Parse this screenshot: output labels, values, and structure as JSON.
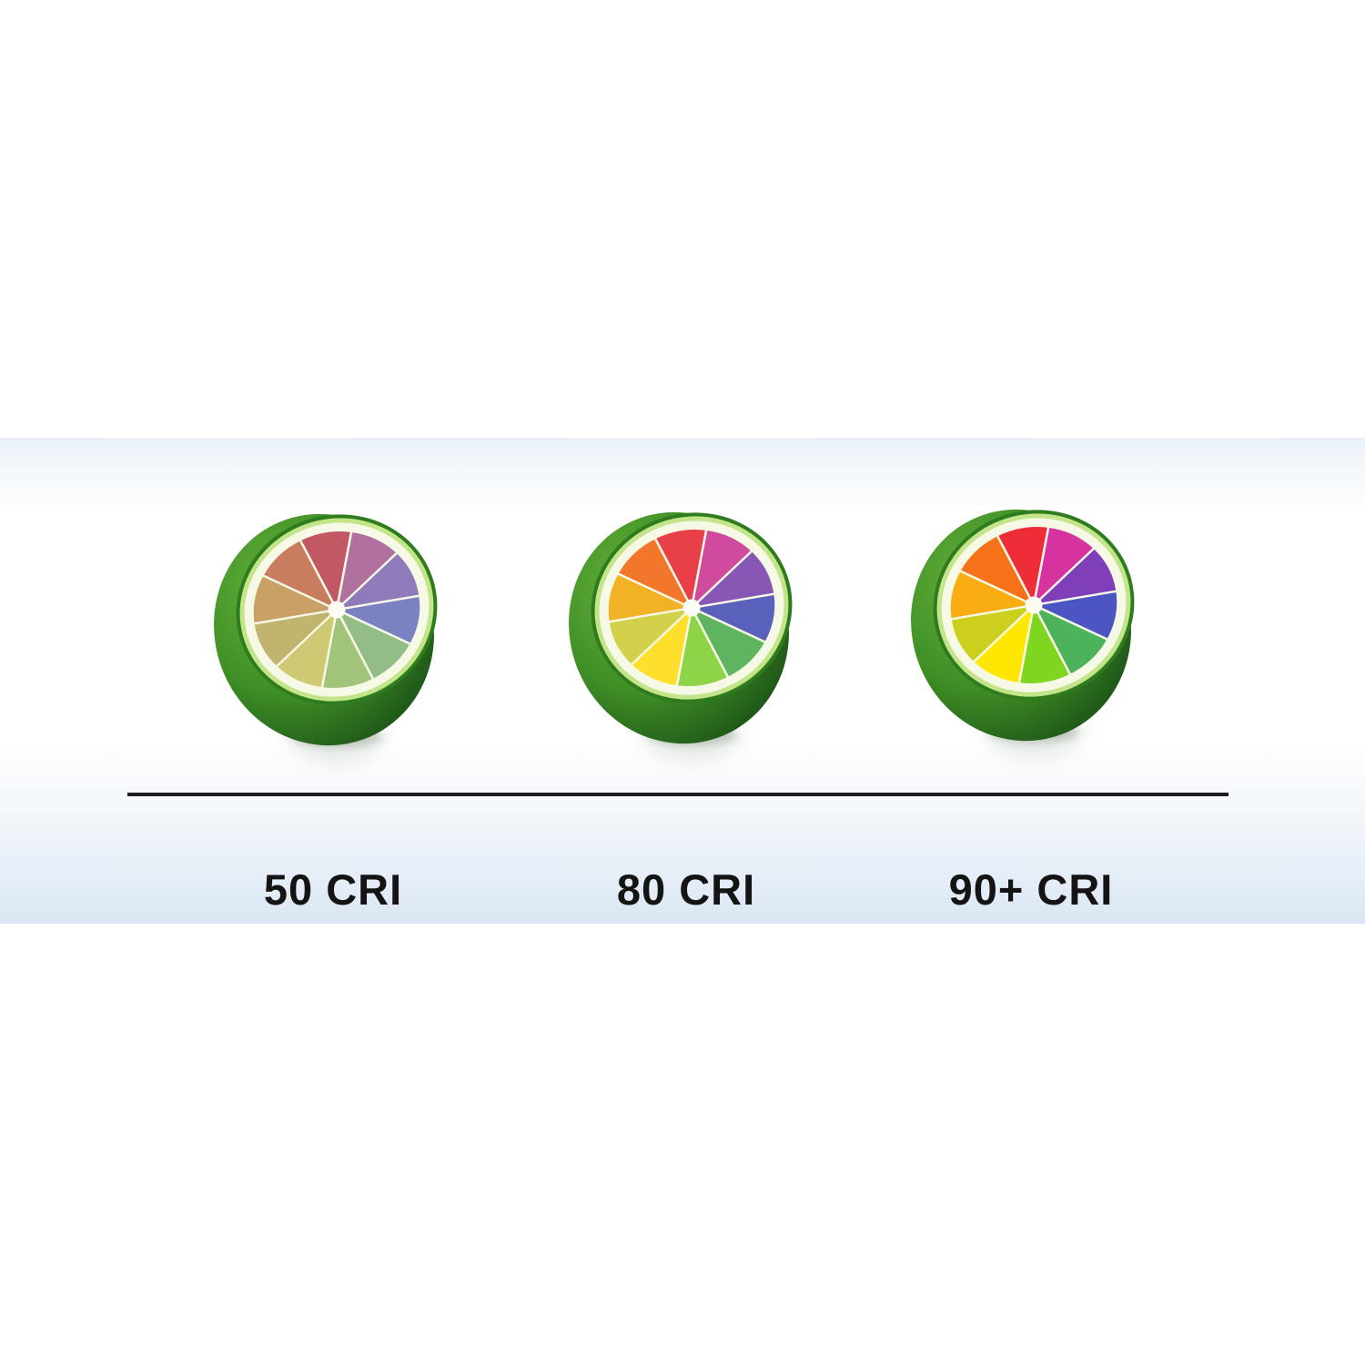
{
  "figure": {
    "description": "Color Rendering Index comparison using color-wheel lime halves",
    "divider_color": "#1c1c1c",
    "band_top_color": "#eaf1f9",
    "band_bottom_color": "#d9e6f3",
    "label_color": "#141414",
    "items": [
      {
        "id": "50-cri",
        "label": "50 CRI",
        "wedge_colors": [
          "#c25862",
          "#b1719f",
          "#8f7abc",
          "#7b82c2",
          "#93bc87",
          "#a2c479",
          "#cfc973",
          "#c1b46e",
          "#c9a166",
          "#c87d5e"
        ]
      },
      {
        "id": "80-cri",
        "label": "80 CRI",
        "wedge_colors": [
          "#e83f48",
          "#d04b9d",
          "#8856b4",
          "#5a61ba",
          "#5fb55f",
          "#8ed447",
          "#fee02c",
          "#d3d14b",
          "#f1b225",
          "#f2772a"
        ]
      },
      {
        "id": "90-cri",
        "label": "90+ CRI",
        "wedge_colors": [
          "#ee2d38",
          "#d632a0",
          "#7e3fb8",
          "#4c55c2",
          "#4cb35a",
          "#80d51e",
          "#ffe603",
          "#cdcf1e",
          "#f9ad12",
          "#f57219"
        ]
      }
    ],
    "lime_style": {
      "skin_dark": "#1a4f16",
      "skin_mid": "#3f8f26",
      "skin_light": "#65b13a",
      "rind_edge": "#2f7c1f",
      "rind_inner": "#c3e489",
      "pith": "#f5f9e6",
      "center_dot": "#fbfdf2"
    }
  }
}
